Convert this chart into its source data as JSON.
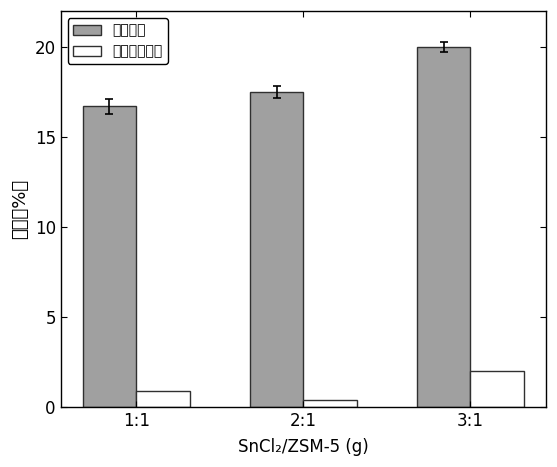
{
  "categories": [
    "1:1",
    "2:1",
    "3:1"
  ],
  "series": [
    {
      "label": "乳酸乙酩",
      "values": [
        16.7,
        17.5,
        20.0
      ],
      "errors": [
        0.4,
        0.35,
        0.3
      ],
      "color": "#a0a0a0",
      "edgecolor": "#303030"
    },
    {
      "label": "乙酰丙酸乙酩",
      "values": [
        0.9,
        0.4,
        2.0
      ],
      "errors": [
        0.0,
        0.0,
        0.0
      ],
      "color": "#ffffff",
      "edgecolor": "#303030"
    }
  ],
  "ylabel": "产率（%）",
  "xlabel": "SnCl₂/ZSM-5 (g)",
  "ylim": [
    0,
    22
  ],
  "yticks": [
    0,
    5,
    10,
    15,
    20
  ],
  "bar_width": 0.32,
  "legend_loc": "upper left",
  "figsize": [
    5.57,
    4.67
  ],
  "dpi": 100,
  "background_color": "#ffffff"
}
